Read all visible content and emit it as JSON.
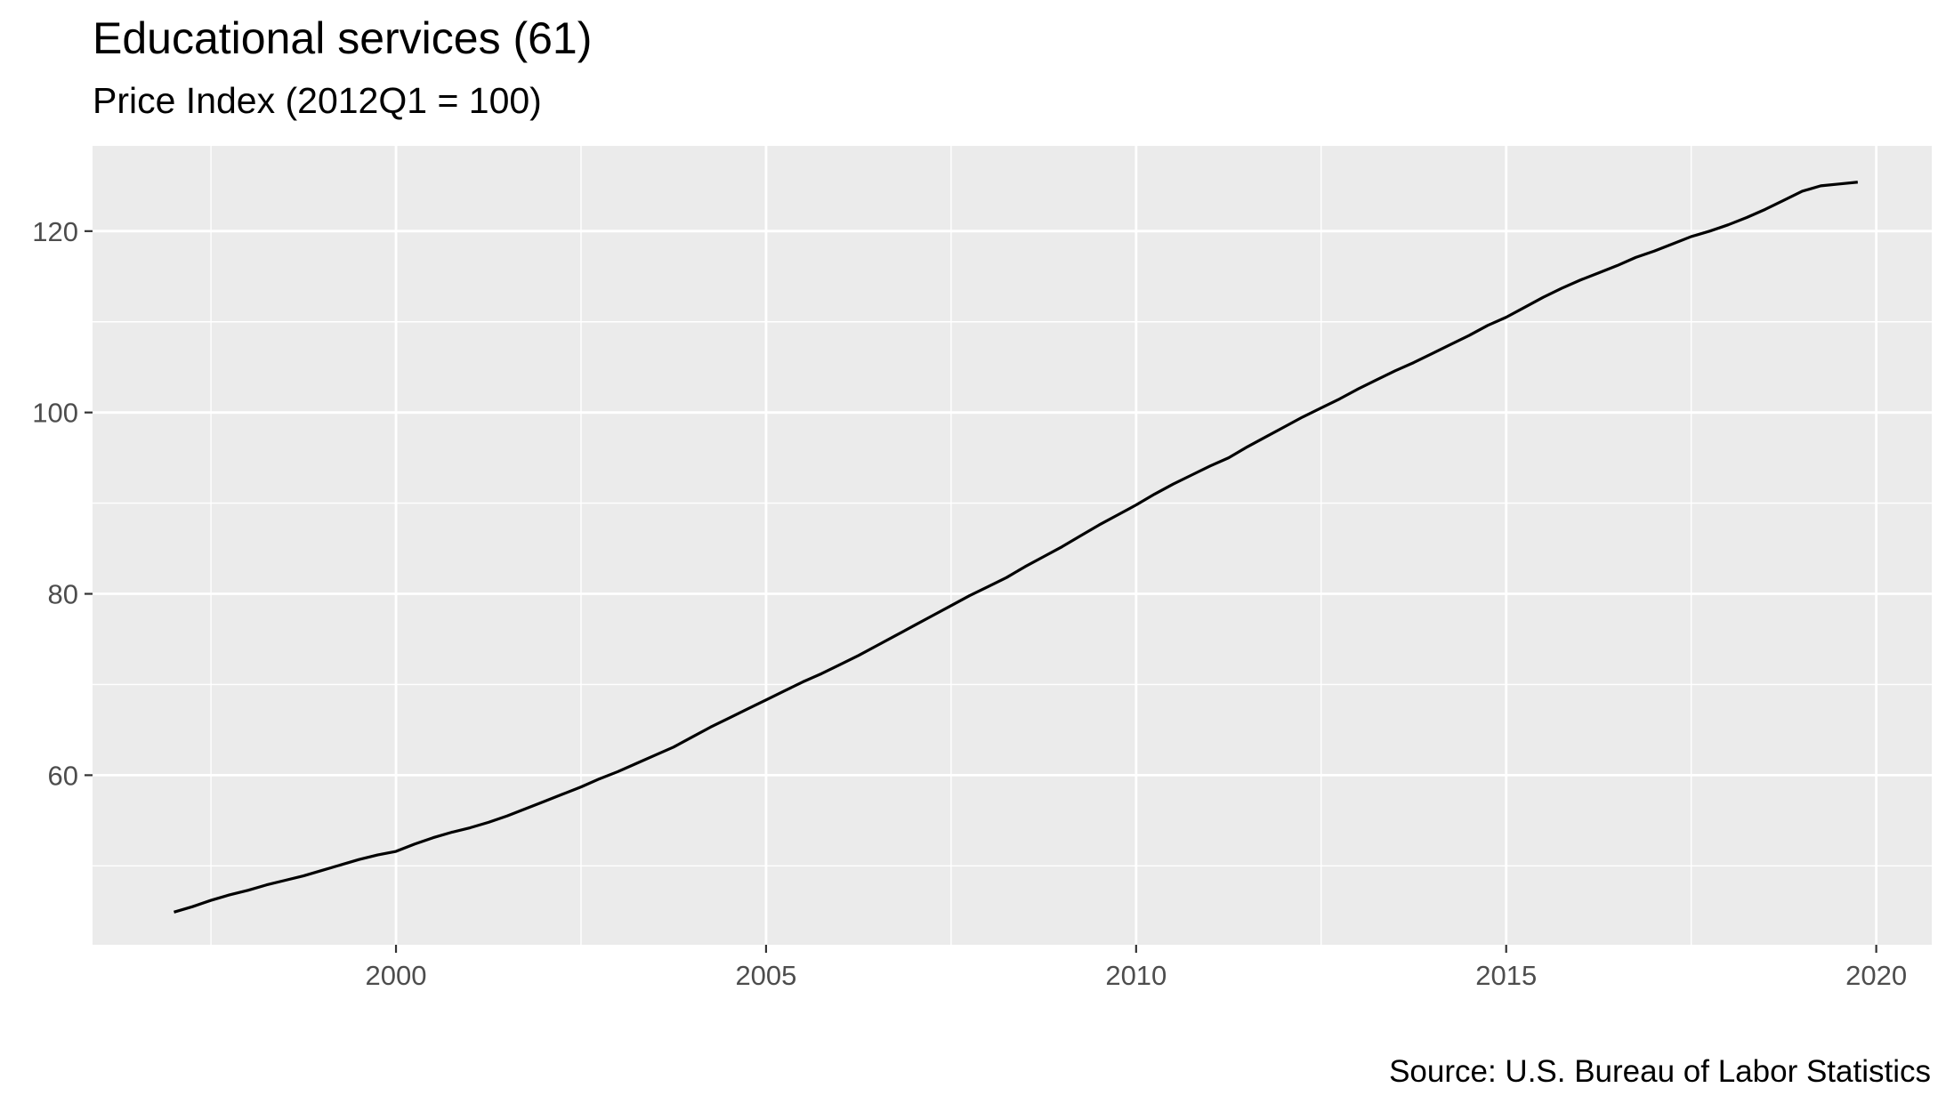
{
  "chart_data": {
    "type": "line",
    "title": "Educational services (61)",
    "subtitle": "Price Index (2012Q1 = 100)",
    "caption": "Source: U.S. Bureau of Labor Statistics",
    "xlabel": "",
    "ylabel": "",
    "xlim": [
      1995.9,
      2020.75
    ],
    "ylim": [
      41.3,
      129.4
    ],
    "x_ticks": [
      2000,
      2005,
      2010,
      2015,
      2020
    ],
    "y_ticks": [
      60,
      80,
      100,
      120
    ],
    "grid": true,
    "colors": {
      "panel": "#ebebeb",
      "grid": "#ffffff",
      "line": "#000000",
      "tick_text": "#4d4d4d"
    },
    "series": [
      {
        "x": [
          1997.0,
          1997.25,
          1997.5,
          1997.75,
          1998.0,
          1998.25,
          1998.5,
          1998.75,
          1999.0,
          1999.25,
          1999.5,
          1999.75,
          2000.0,
          2000.25,
          2000.5,
          2000.75,
          2001.0,
          2001.25,
          2001.5,
          2001.75,
          2002.0,
          2002.25,
          2002.5,
          2002.75,
          2003.0,
          2003.25,
          2003.5,
          2003.75,
          2004.0,
          2004.25,
          2004.5,
          2004.75,
          2005.0,
          2005.25,
          2005.5,
          2005.75,
          2006.0,
          2006.25,
          2006.5,
          2006.75,
          2007.0,
          2007.25,
          2007.5,
          2007.75,
          2008.0,
          2008.25,
          2008.5,
          2008.75,
          2009.0,
          2009.25,
          2009.5,
          2009.75,
          2010.0,
          2010.25,
          2010.5,
          2010.75,
          2011.0,
          2011.25,
          2011.5,
          2011.75,
          2012.0,
          2012.25,
          2012.5,
          2012.75,
          2013.0,
          2013.25,
          2013.5,
          2013.75,
          2014.0,
          2014.25,
          2014.5,
          2014.75,
          2015.0,
          2015.25,
          2015.5,
          2015.75,
          2016.0,
          2016.25,
          2016.5,
          2016.75,
          2017.0,
          2017.25,
          2017.5,
          2017.75,
          2018.0,
          2018.25,
          2018.5,
          2018.75,
          2019.0,
          2019.25,
          2019.5,
          2019.75
        ],
        "y": [
          44.9,
          45.5,
          46.2,
          46.8,
          47.3,
          47.9,
          48.4,
          48.9,
          49.5,
          50.1,
          50.7,
          51.2,
          51.6,
          52.4,
          53.1,
          53.7,
          54.2,
          54.8,
          55.5,
          56.3,
          57.1,
          57.9,
          58.7,
          59.6,
          60.4,
          61.3,
          62.2,
          63.1,
          64.2,
          65.3,
          66.3,
          67.3,
          68.3,
          69.3,
          70.3,
          71.2,
          72.2,
          73.2,
          74.3,
          75.4,
          76.5,
          77.6,
          78.7,
          79.8,
          80.8,
          81.8,
          83.0,
          84.1,
          85.2,
          86.4,
          87.6,
          88.7,
          89.8,
          91.0,
          92.1,
          93.1,
          94.1,
          95.0,
          96.2,
          97.3,
          98.4,
          99.5,
          100.5,
          101.5,
          102.6,
          103.6,
          104.6,
          105.5,
          106.5,
          107.5,
          108.5,
          109.6,
          110.5,
          111.6,
          112.7,
          113.7,
          114.6,
          115.4,
          116.2,
          117.1,
          117.8,
          118.6,
          119.4,
          120.0,
          120.7,
          121.5,
          122.4,
          123.4,
          124.4,
          125.0,
          125.2,
          125.4
        ]
      }
    ]
  }
}
